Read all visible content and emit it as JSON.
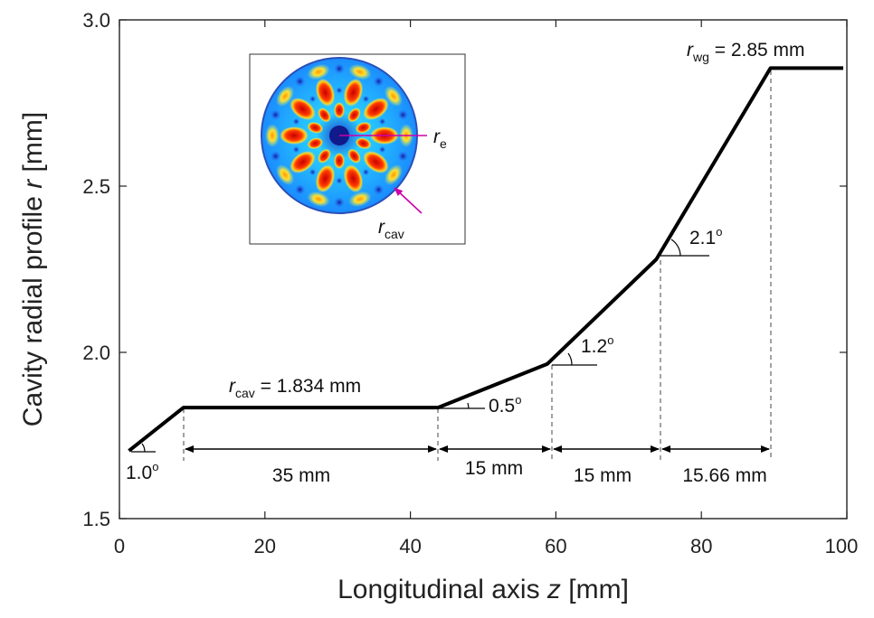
{
  "chart_data": {
    "type": "line",
    "xlabel_text": "Longitudinal axis",
    "xlabel_var": "z",
    "xlabel_unit": "[mm]",
    "ylabel_text": "Cavity radial profile",
    "ylabel_var": "r",
    "ylabel_unit": "[mm]",
    "xlim": [
      0,
      100
    ],
    "ylim": [
      1.5,
      3.0
    ],
    "xticks": [
      "0",
      "20",
      "40",
      "60",
      "80",
      "100"
    ],
    "yticks": [
      "1.5",
      "2.0",
      "2.5",
      "3.0"
    ],
    "grid": false,
    "series": [
      {
        "x": [
          1.3,
          8.8,
          43.8,
          58.8,
          73.8,
          89.5,
          99.5
        ],
        "y": [
          1.704,
          1.834,
          1.834,
          1.965,
          2.28,
          2.855,
          2.855
        ]
      }
    ],
    "annotations": {
      "rcav_label": {
        "main": "r",
        "sub": "cav",
        "text": " = 1.834 mm"
      },
      "rwg_label": {
        "main": "r",
        "sub": "wg",
        "text": " = 2.85 mm"
      },
      "angles": [
        {
          "value": "1.0",
          "sup": "o"
        },
        {
          "value": "0.5",
          "sup": "o"
        },
        {
          "value": "1.2",
          "sup": "o"
        },
        {
          "value": "2.1",
          "sup": "o"
        }
      ],
      "lengths": [
        "35 mm",
        "15 mm",
        "15 mm",
        "15.66 mm"
      ],
      "inset_re": {
        "main": "r",
        "sub": "e"
      },
      "inset_rcav": {
        "main": "r",
        "sub": "cav"
      }
    },
    "colors": {
      "line": "#000000",
      "inset_arrow": "#cc00aa"
    }
  }
}
